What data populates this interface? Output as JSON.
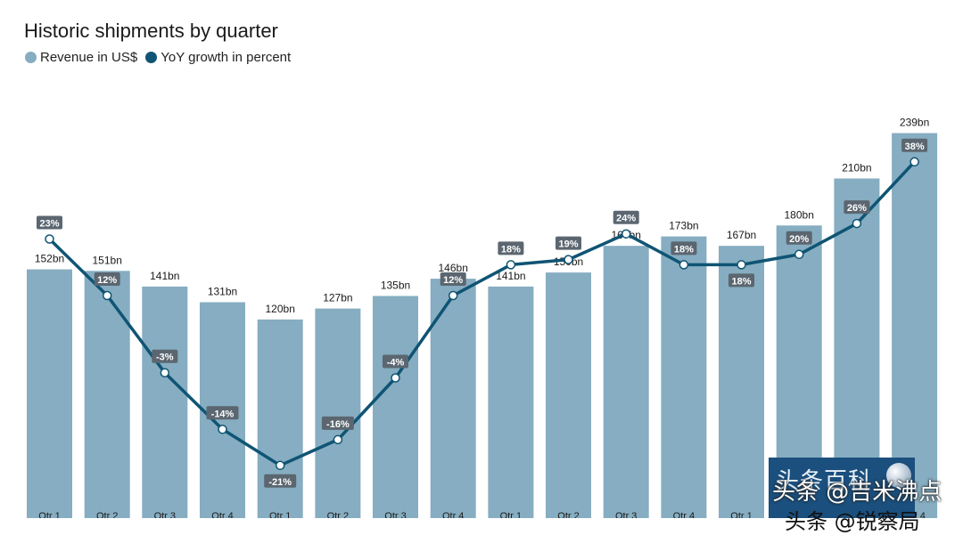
{
  "chart_data": {
    "type": "bar",
    "title": "Historic shipments by quarter",
    "legend": {
      "placement": "top-left"
    },
    "categories": [
      "Qtr 1",
      "Qtr 2",
      "Qtr 3",
      "Qtr 4",
      "Qtr 1",
      "Qtr 2",
      "Qtr 3",
      "Qtr 4",
      "Qtr 1",
      "Qtr 2",
      "Qtr 3",
      "Qtr 4",
      "Qtr 1",
      "Qtr 2",
      "Qtr 3",
      "Qtr 4"
    ],
    "series": [
      {
        "name": "Revenue in US$",
        "type": "bar",
        "color": "#86adc1",
        "values": [
          152,
          151,
          141,
          131,
          120,
          127,
          135,
          146,
          141,
          150,
          167,
          173,
          167,
          180,
          210,
          239
        ],
        "labels": [
          "152bn",
          "151bn",
          "141bn",
          "131bn",
          "120bn",
          "127bn",
          "135bn",
          "146bn",
          "141bn",
          "150bn",
          "167bn",
          "173bn",
          "167bn",
          "180bn",
          "210bn",
          "239bn"
        ]
      },
      {
        "name": "YoY growth in percent",
        "type": "line",
        "color": "#0f5474",
        "values": [
          23,
          12,
          -3,
          -14,
          -21,
          -16,
          -4,
          12,
          18,
          19,
          24,
          18,
          18,
          20,
          26,
          38
        ],
        "labels": [
          "23%",
          "12%",
          "-3%",
          "-14%",
          "-21%",
          "-16%",
          "-4%",
          "12%",
          "18%",
          "19%",
          "24%",
          "18%",
          "18%",
          "20%",
          "26%",
          "38%"
        ],
        "label_below": [
          false,
          false,
          false,
          false,
          true,
          false,
          false,
          false,
          false,
          false,
          false,
          false,
          true,
          false,
          false,
          false
        ]
      }
    ],
    "grid": false
  },
  "watermark": {
    "logo": "头条百科",
    "line1": "头条 @吉米沸点",
    "line2": "头条 @锐察局"
  }
}
